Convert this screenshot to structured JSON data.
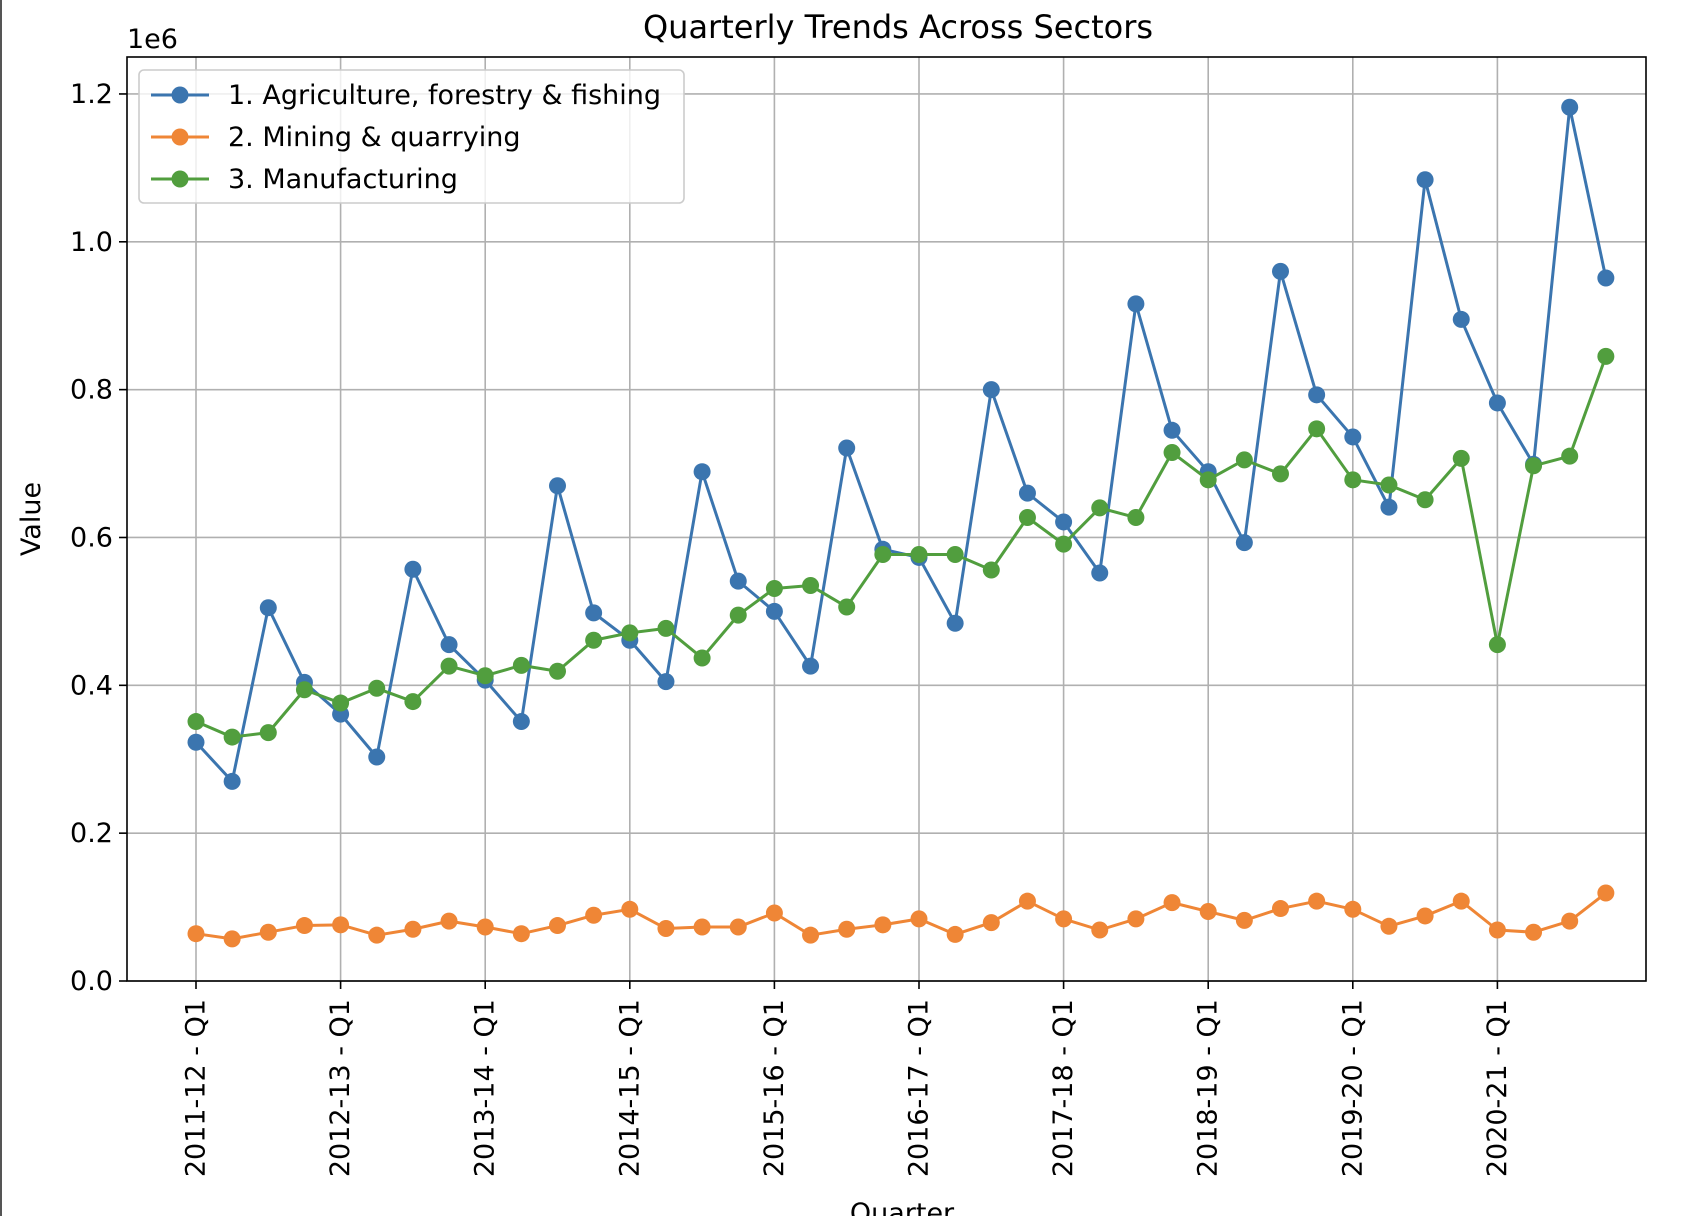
{
  "chart_data": {
    "type": "line",
    "title": "Quarterly Trends Across Sectors",
    "xlabel": "Quarter",
    "ylabel": "Value",
    "y_offset_label": "1e6",
    "ylim": [
      0,
      1.25
    ],
    "yticks": [
      "0.0",
      "0.2",
      "0.4",
      "0.6",
      "0.8",
      "1.0",
      "1.2"
    ],
    "grid": true,
    "legend_position": "top-left",
    "marker": "circle",
    "categories": [
      "2011-12 - Q1",
      "2011-12 - Q2",
      "2011-12 - Q3",
      "2011-12 - Q4",
      "2012-13 - Q1",
      "2012-13 - Q2",
      "2012-13 - Q3",
      "2012-13 - Q4",
      "2013-14 - Q1",
      "2013-14 - Q2",
      "2013-14 - Q3",
      "2013-14 - Q4",
      "2014-15 - Q1",
      "2014-15 - Q2",
      "2014-15 - Q3",
      "2014-15 - Q4",
      "2015-16 - Q1",
      "2015-16 - Q2",
      "2015-16 - Q3",
      "2015-16 - Q4",
      "2016-17 - Q1",
      "2016-17 - Q2",
      "2016-17 - Q3",
      "2016-17 - Q4",
      "2017-18 - Q1",
      "2017-18 - Q2",
      "2017-18 - Q3",
      "2017-18 - Q4",
      "2018-19 - Q1",
      "2018-19 - Q2",
      "2018-19 - Q3",
      "2018-19 - Q4",
      "2019-20 - Q1",
      "2019-20 - Q2",
      "2019-20 - Q3",
      "2019-20 - Q4",
      "2020-21 - Q1",
      "2020-21 - Q2",
      "2020-21 - Q3",
      "2020-21 - Q4"
    ],
    "xtick_labels": [
      "2011-12 - Q1",
      "2012-13 - Q1",
      "2013-14 - Q1",
      "2014-15 - Q1",
      "2015-16 - Q1",
      "2016-17 - Q1",
      "2017-18 - Q1",
      "2018-19 - Q1",
      "2019-20 - Q1",
      "2020-21 - Q1"
    ],
    "series": [
      {
        "name": "1. Agriculture, forestry & fishing",
        "color": "#3b75af",
        "values": [
          0.323,
          0.27,
          0.505,
          0.404,
          0.361,
          0.303,
          0.557,
          0.455,
          0.407,
          0.351,
          0.67,
          0.498,
          0.461,
          0.405,
          0.689,
          0.541,
          0.5,
          0.426,
          0.721,
          0.584,
          0.573,
          0.484,
          0.8,
          0.66,
          0.621,
          0.552,
          0.916,
          0.745,
          0.689,
          0.593,
          0.96,
          0.793,
          0.736,
          0.641,
          1.084,
          0.895,
          0.782,
          0.699,
          1.182,
          0.951
        ]
      },
      {
        "name": "2. Mining & quarrying",
        "color": "#ef8636",
        "values": [
          0.064,
          0.057,
          0.066,
          0.075,
          0.076,
          0.062,
          0.07,
          0.081,
          0.073,
          0.064,
          0.075,
          0.089,
          0.097,
          0.071,
          0.073,
          0.073,
          0.092,
          0.062,
          0.07,
          0.076,
          0.084,
          0.063,
          0.079,
          0.108,
          0.084,
          0.069,
          0.084,
          0.106,
          0.094,
          0.082,
          0.098,
          0.108,
          0.097,
          0.074,
          0.088,
          0.108,
          0.069,
          0.066,
          0.081,
          0.119
        ]
      },
      {
        "name": "3. Manufacturing",
        "color": "#519e3e",
        "values": [
          0.351,
          0.33,
          0.336,
          0.394,
          0.376,
          0.396,
          0.378,
          0.426,
          0.413,
          0.427,
          0.419,
          0.461,
          0.471,
          0.477,
          0.437,
          0.495,
          0.531,
          0.535,
          0.506,
          0.577,
          0.577,
          0.577,
          0.556,
          0.627,
          0.591,
          0.64,
          0.627,
          0.715,
          0.678,
          0.705,
          0.686,
          0.747,
          0.678,
          0.671,
          0.651,
          0.707,
          0.455,
          0.697,
          0.71,
          0.845
        ]
      }
    ]
  }
}
